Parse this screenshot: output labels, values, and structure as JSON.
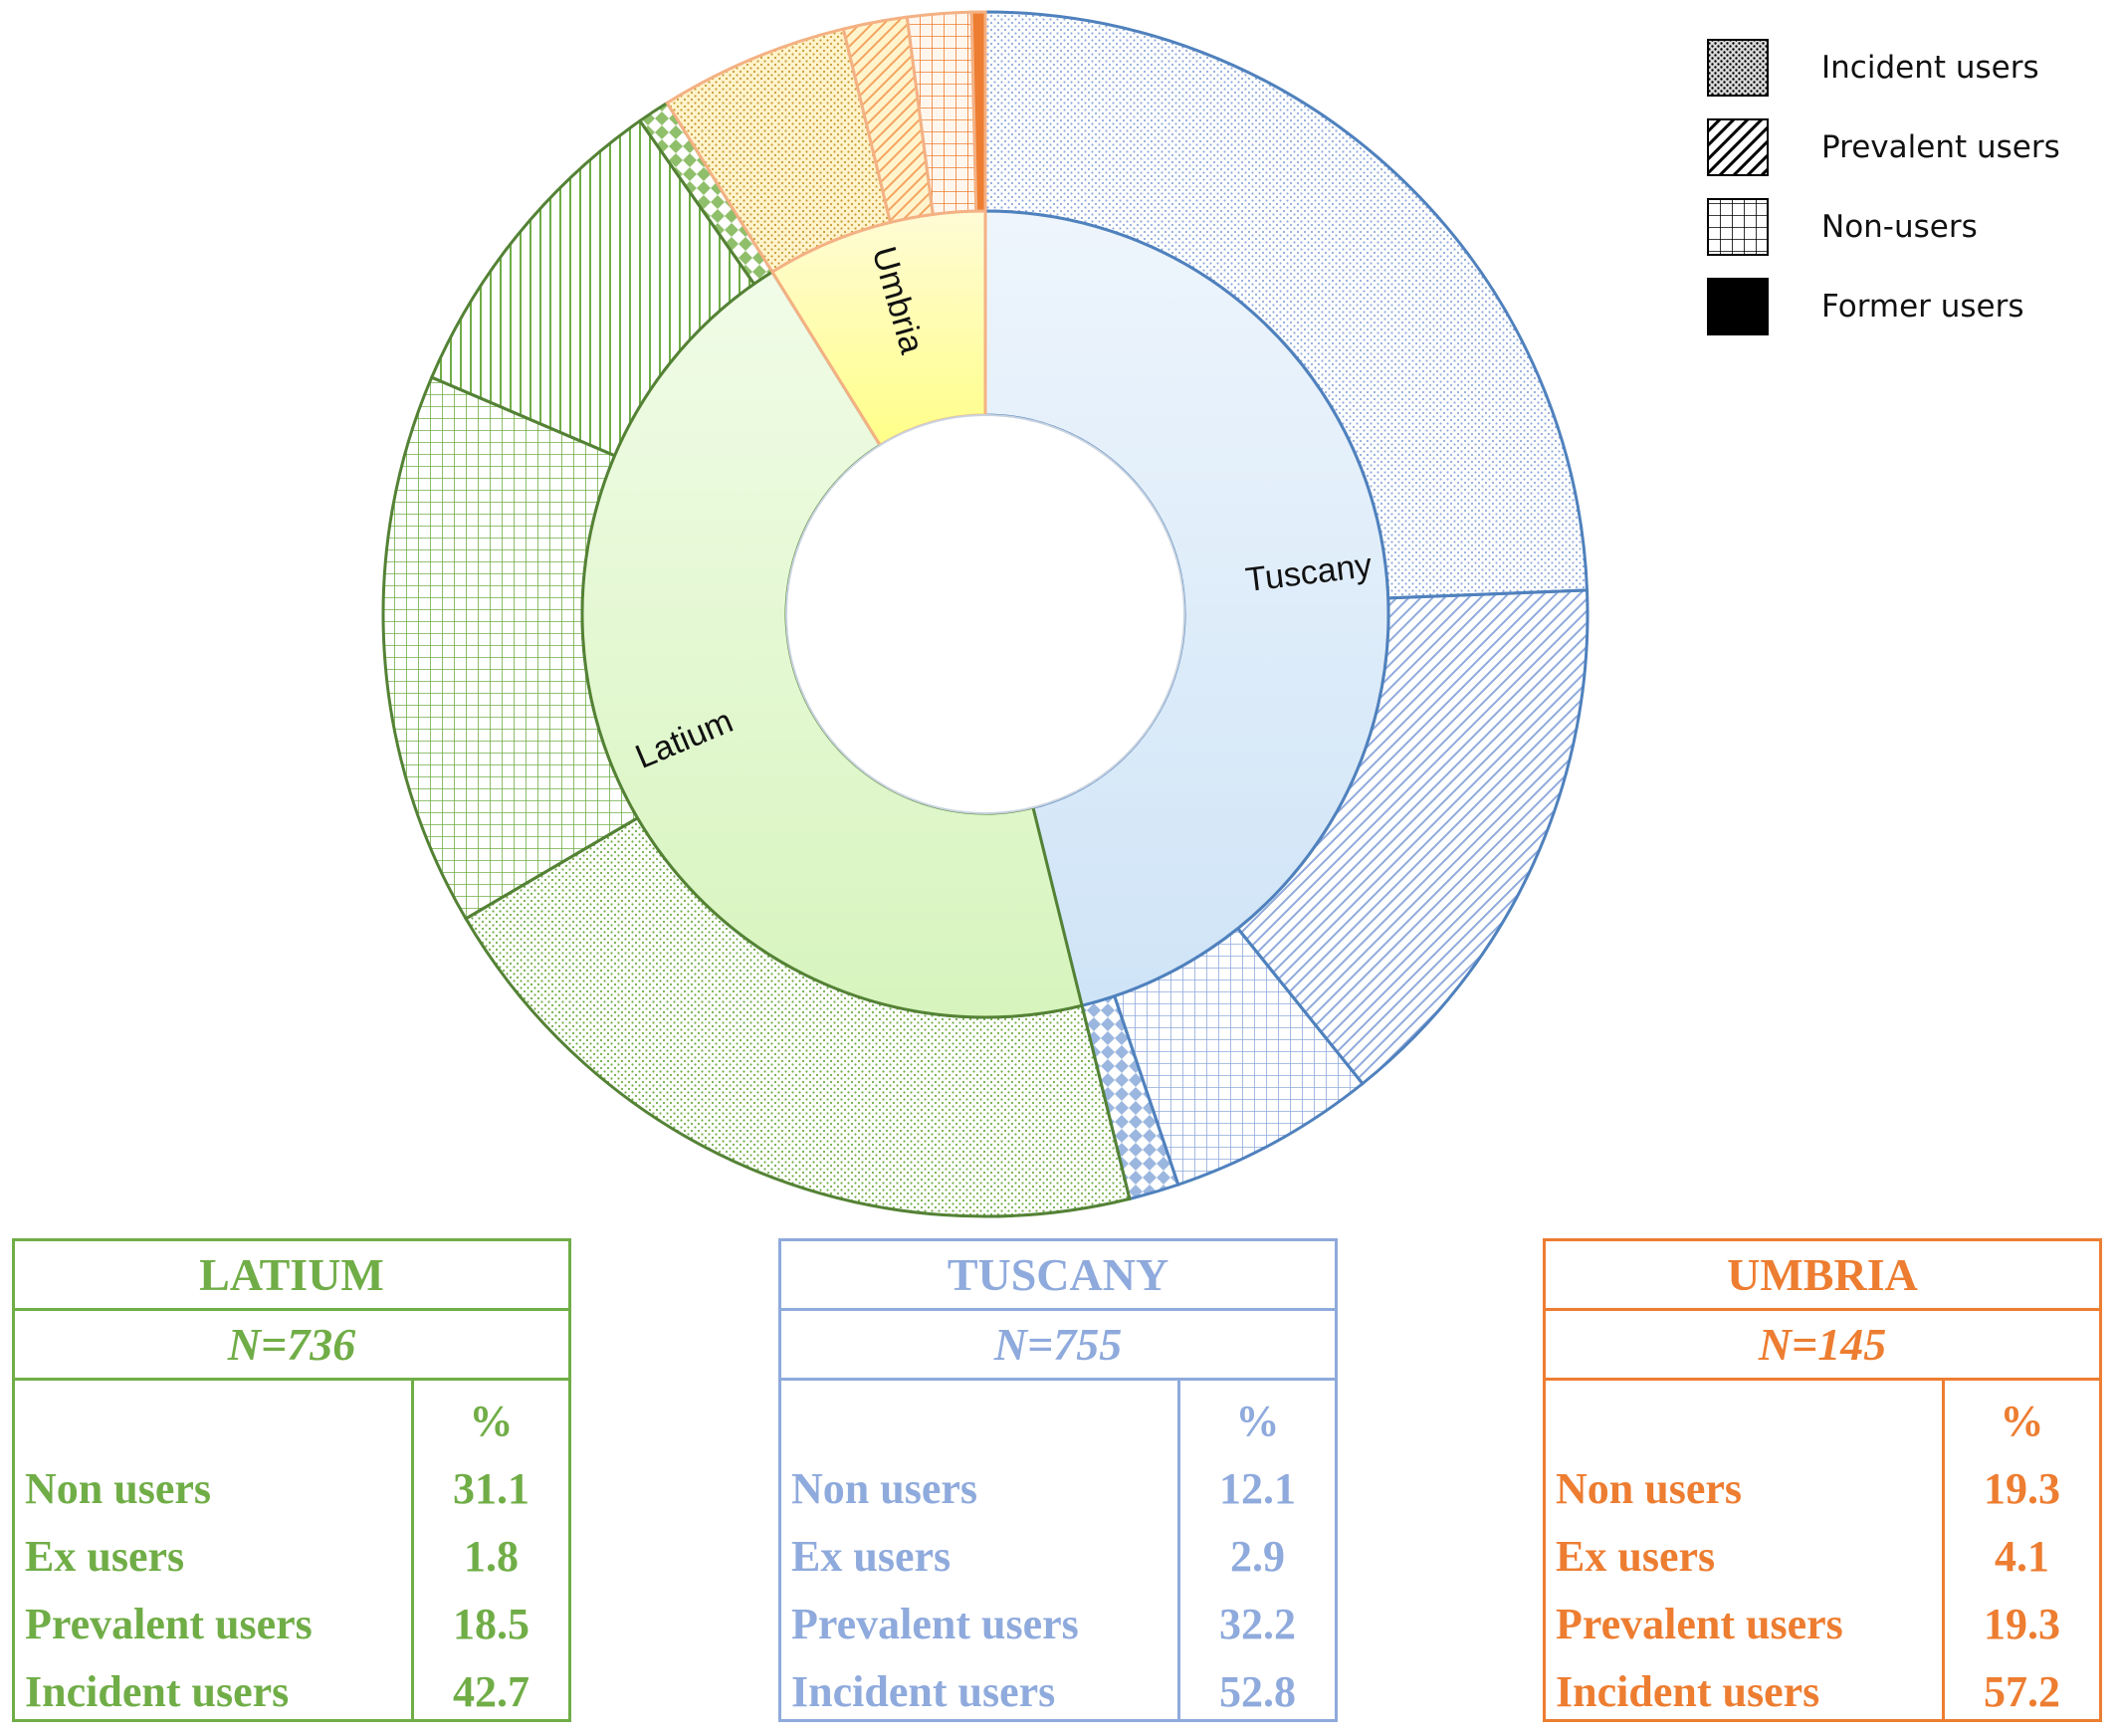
{
  "chart_data": {
    "type": "pie",
    "subtype": "sunburst-donut",
    "inner_ring": [
      {
        "name": "Tuscany",
        "N": 755,
        "color": "#ddebf7",
        "stroke": "#4f81bd"
      },
      {
        "name": "Latium",
        "N": 736,
        "color": "#e2f8cd",
        "stroke": "#548235"
      },
      {
        "name": "Umbria",
        "N": 145,
        "color": "#ffff99",
        "stroke": "#f4b183"
      }
    ],
    "outer_ring": [
      {
        "region": "Tuscany",
        "category": "Incident users",
        "percent": 52.8,
        "pattern": "dots"
      },
      {
        "region": "Tuscany",
        "category": "Prevalent users",
        "percent": 32.2,
        "pattern": "diagonal"
      },
      {
        "region": "Tuscany",
        "category": "Non-users",
        "percent": 12.1,
        "pattern": "grid"
      },
      {
        "region": "Tuscany",
        "category": "Former users",
        "percent": 2.9,
        "pattern": "diamond"
      },
      {
        "region": "Latium",
        "category": "Incident users",
        "percent": 42.7,
        "pattern": "dots"
      },
      {
        "region": "Latium",
        "category": "Non-users",
        "percent": 31.1,
        "pattern": "grid"
      },
      {
        "region": "Latium",
        "category": "Prevalent users",
        "percent": 18.5,
        "pattern": "vertical"
      },
      {
        "region": "Latium",
        "category": "Former users",
        "percent": 1.8,
        "pattern": "diamond"
      },
      {
        "region": "Umbria",
        "category": "Incident users",
        "percent": 57.2,
        "pattern": "dots"
      },
      {
        "region": "Umbria",
        "category": "Prevalent users",
        "percent": 19.3,
        "pattern": "diagonal"
      },
      {
        "region": "Umbria",
        "category": "Non-users",
        "percent": 19.3,
        "pattern": "grid"
      },
      {
        "region": "Umbria",
        "category": "Former users",
        "percent": 4.1,
        "pattern": "solid"
      }
    ],
    "legend": {
      "placement": "top-right",
      "items": [
        {
          "label": "Incident users",
          "pattern": "dots"
        },
        {
          "label": "Prevalent users",
          "pattern": "diagonal"
        },
        {
          "label": "Non-users",
          "pattern": "grid"
        },
        {
          "label": "Former users",
          "pattern": "solid"
        }
      ]
    }
  },
  "tables": [
    {
      "key": "latium",
      "title": "LATIUM",
      "n_label": "N=736",
      "percent_header": "%",
      "rows": [
        {
          "label": "Non users",
          "value": "31.1"
        },
        {
          "label": "Ex users",
          "value": "1.8"
        },
        {
          "label": "Prevalent users",
          "value": "18.5"
        },
        {
          "label": "Incident users",
          "value": "42.7"
        }
      ]
    },
    {
      "key": "tuscany",
      "title": "TUSCANY",
      "n_label": "N=755",
      "percent_header": "%",
      "rows": [
        {
          "label": "Non users",
          "value": "12.1"
        },
        {
          "label": "Ex users",
          "value": "2.9"
        },
        {
          "label": "Prevalent users",
          "value": "32.2"
        },
        {
          "label": "Incident users",
          "value": "52.8"
        }
      ]
    },
    {
      "key": "umbria",
      "title": "UMBRIA",
      "n_label": "N=145",
      "percent_header": "%",
      "rows": [
        {
          "label": "Non users",
          "value": "19.3"
        },
        {
          "label": "Ex users",
          "value": "4.1"
        },
        {
          "label": "Prevalent users",
          "value": "19.3"
        },
        {
          "label": "Incident users",
          "value": "57.2"
        }
      ]
    }
  ]
}
